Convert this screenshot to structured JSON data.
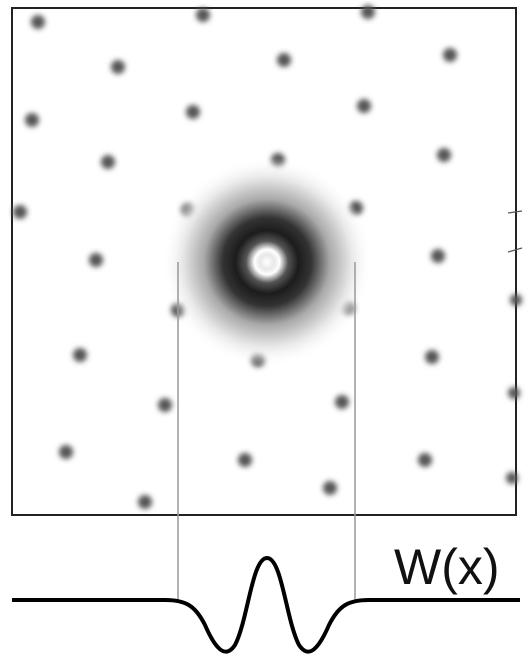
{
  "label": "W(x)"
}
